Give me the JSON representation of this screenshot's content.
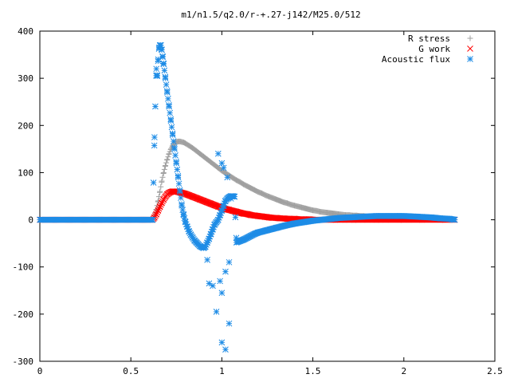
{
  "chart_data": {
    "type": "scatter",
    "title": "m1/n1.5/q2.0/r-+.27-j142/M25.0/512",
    "xlabel": "",
    "ylabel": "",
    "xlim": [
      0,
      2.5
    ],
    "ylim": [
      -300,
      400
    ],
    "x_ticks": [
      0,
      0.5,
      1,
      1.5,
      2,
      2.5
    ],
    "x_tick_labels": [
      "0",
      "0.5",
      "1",
      "1.5",
      "2",
      "2.5"
    ],
    "y_ticks": [
      -300,
      -200,
      -100,
      0,
      100,
      200,
      300,
      400
    ],
    "y_tick_labels": [
      "-300",
      "-200",
      "-100",
      "0",
      "100",
      "200",
      "300",
      "400"
    ],
    "grid": false,
    "legend_position": "top-right",
    "series": [
      {
        "name": "R stress",
        "color": "#a0a0a0",
        "marker": "plus",
        "x": [
          0,
          0.62,
          0.63,
          0.64,
          0.65,
          0.66,
          0.67,
          0.68,
          0.69,
          0.7,
          0.71,
          0.72,
          0.73,
          0.74,
          0.75,
          0.76,
          0.77,
          0.78,
          0.79,
          0.8,
          0.82,
          0.84,
          0.86,
          0.88,
          0.9,
          0.92,
          0.94,
          0.96,
          0.98,
          1.0,
          1.02,
          1.04,
          1.06,
          1.08,
          1.1,
          1.12,
          1.14,
          1.16,
          1.18,
          1.2,
          1.22,
          1.24,
          1.26,
          1.28,
          1.3,
          1.32,
          1.34,
          1.36,
          1.38,
          1.4,
          1.42,
          1.44,
          1.46,
          1.48,
          1.5,
          1.52,
          1.54,
          1.56,
          1.58,
          1.6,
          1.62,
          1.64,
          1.66,
          1.68,
          1.7,
          1.72,
          1.74,
          1.76,
          1.78,
          1.8,
          1.85,
          1.9,
          1.95,
          2.0,
          2.05,
          2.1,
          2.15,
          2.2,
          2.25,
          2.28
        ],
        "y": [
          0,
          0,
          10,
          22,
          40,
          60,
          82,
          100,
          115,
          128,
          140,
          150,
          157,
          162,
          165,
          166,
          166,
          165,
          164,
          162,
          157,
          152,
          146,
          140,
          134,
          128,
          122,
          116,
          110,
          104,
          99,
          94,
          89,
          84,
          80,
          75,
          71,
          67,
          63,
          59,
          56,
          52,
          49,
          46,
          43,
          40,
          37,
          35,
          32,
          30,
          28,
          26,
          24,
          22,
          20,
          19,
          17,
          16,
          15,
          14,
          13,
          12,
          11,
          10,
          10,
          9,
          9,
          8,
          8,
          7,
          6,
          5,
          4,
          3,
          2,
          2,
          1,
          1,
          0,
          0
        ]
      },
      {
        "name": "G work",
        "color": "#ff0000",
        "marker": "cross",
        "x": [
          0,
          0.62,
          0.63,
          0.64,
          0.65,
          0.66,
          0.67,
          0.68,
          0.69,
          0.7,
          0.71,
          0.72,
          0.73,
          0.74,
          0.75,
          0.76,
          0.77,
          0.78,
          0.79,
          0.8,
          0.82,
          0.84,
          0.86,
          0.88,
          0.9,
          0.92,
          0.94,
          0.96,
          0.98,
          1.0,
          1.02,
          1.04,
          1.06,
          1.08,
          1.1,
          1.12,
          1.14,
          1.16,
          1.18,
          1.2,
          1.22,
          1.24,
          1.26,
          1.28,
          1.3,
          1.32,
          1.34,
          1.36,
          1.38,
          1.4,
          1.42,
          1.44,
          1.46,
          1.48,
          1.5,
          1.55,
          1.6,
          1.65,
          1.7,
          1.75,
          1.8,
          1.85,
          1.9,
          2.0,
          2.1,
          2.2,
          2.28
        ],
        "y": [
          0,
          0,
          5,
          12,
          20,
          28,
          36,
          43,
          49,
          54,
          57,
          59,
          60,
          60,
          60,
          59,
          58,
          57,
          56,
          55,
          52,
          49,
          46,
          43,
          40,
          37,
          34,
          31,
          28,
          26,
          23,
          21,
          19,
          17,
          15,
          13,
          12,
          10,
          9,
          8,
          7,
          6,
          5,
          4,
          4,
          3,
          3,
          2,
          2,
          2,
          1,
          1,
          1,
          1,
          0,
          0,
          0,
          0,
          0,
          0,
          0,
          0,
          0,
          0,
          0,
          0,
          0
        ]
      },
      {
        "name": "Acoustic flux",
        "color": "#1e8ce6",
        "marker": "star",
        "x": [
          0,
          0.62,
          0.63,
          0.64,
          0.645,
          0.65,
          0.655,
          0.66,
          0.665,
          0.67,
          0.675,
          0.68,
          0.69,
          0.7,
          0.71,
          0.72,
          0.73,
          0.74,
          0.75,
          0.76,
          0.77,
          0.78,
          0.79,
          0.8,
          0.81,
          0.82,
          0.83,
          0.84,
          0.85,
          0.86,
          0.87,
          0.88,
          0.89,
          0.9,
          0.91,
          0.92,
          0.93,
          0.94,
          0.95,
          0.96,
          0.97,
          0.98,
          0.99,
          1.0,
          1.01,
          1.02,
          1.03,
          1.04,
          1.05,
          1.06,
          1.07,
          1.08,
          1.1,
          1.12,
          1.14,
          1.16,
          1.18,
          1.2,
          1.25,
          1.3,
          1.35,
          1.4,
          1.45,
          1.5,
          1.55,
          1.6,
          1.65,
          1.7,
          1.75,
          1.8,
          1.85,
          1.9,
          1.95,
          2.0,
          2.05,
          2.1,
          2.15,
          2.2,
          2.25,
          2.28,
          0.92,
          0.93,
          0.95,
          0.97,
          1.0,
          1.02,
          1.04,
          0.98,
          1.0,
          1.01,
          1.03,
          1.05,
          0.99,
          1.0,
          1.02,
          1.04
        ],
        "y": [
          0,
          0,
          175,
          320,
          305,
          340,
          365,
          370,
          370,
          360,
          345,
          330,
          300,
          270,
          240,
          210,
          180,
          150,
          120,
          90,
          60,
          30,
          10,
          -5,
          -15,
          -25,
          -32,
          -38,
          -44,
          -48,
          -52,
          -56,
          -58,
          -60,
          -57,
          -48,
          -40,
          -30,
          -20,
          -10,
          -5,
          0,
          10,
          20,
          30,
          40,
          45,
          48,
          50,
          50,
          49,
          -48,
          -45,
          -42,
          -38,
          -34,
          -30,
          -27,
          -22,
          -17,
          -12,
          -8,
          -5,
          -2,
          0,
          2,
          4,
          5,
          6,
          7,
          8,
          8,
          8,
          8,
          7,
          6,
          5,
          3,
          2,
          0,
          -85,
          -135,
          -140,
          -195,
          -260,
          -275,
          -220,
          140,
          120,
          110,
          90,
          45,
          -130,
          -155,
          -110,
          -90
        ]
      }
    ]
  }
}
